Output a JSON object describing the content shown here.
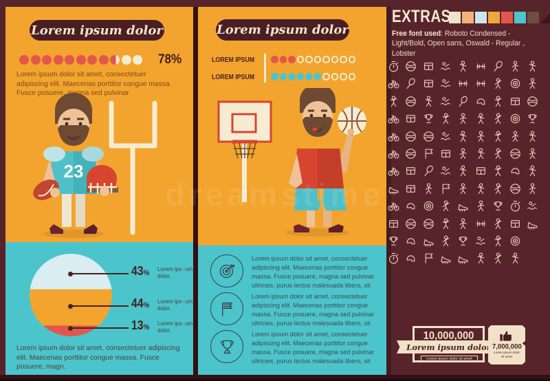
{
  "watermark": {
    "text": "dreamstime"
  },
  "left_panel": {
    "title": "Lorem ipsum dolor",
    "progress": {
      "percent": "78%",
      "total_dots": 11,
      "filled_dots": 8.6,
      "filled_color": "#e2574c",
      "empty_color": "#f6ecd2"
    },
    "intro": "Lorem ipsum dolor sit amet, consectetuer adipiscing elit. Maecenas porttitor congue massa. Fusce posuere, magna sed pulvinar",
    "illustration": "american-football-player-with-goal-post",
    "jersey_number": "23",
    "footer": "Lorem ipsum dolor sit amet, consectetuer adipiscing elit. Maecenas porttitor congue massa. Fusce posuere, magn."
  },
  "middle_panel": {
    "title": "Lorem ipsum dolor",
    "stats": [
      {
        "label": "LOREM IPSUM",
        "filled": 3,
        "total": 10,
        "fill_color": "#e2574c",
        "ring_color": "#f6ecd2"
      },
      {
        "label": "LOREM IPSUM",
        "filled": 6,
        "total": 10,
        "fill_color": "#4cc4cc",
        "ring_color": "#f6ecd2"
      }
    ],
    "illustration": "basketball-player-with-hoop",
    "features": [
      {
        "icon": "dart-target-icon",
        "text": "Lorem ipsum dolor sit amet, consectetuer adipiscing elit. Maecenas porttitor congue massa. Fusce posuere, magna sed pulvinar ultricies, purus lectus malesuada libero, sit"
      },
      {
        "icon": "checkered-flag-icon",
        "text": "Lorem ipsum dolor sit amet, consectetuer adipiscing elit. Maecenas porttitor congue massa. Fusce posuere, magna sed pulvinar ultricies, purus lectus malesuada libero, sit"
      },
      {
        "icon": "trophy-icon",
        "text": "Lorem ipsum dolor sit amet, consectetuer adipiscing elit. Maecenas porttitor congue massa. Fusce posuere, magna sed pulvinar ultricies, purus lectus malesuada libero, sit"
      }
    ]
  },
  "right_panel": {
    "title": "EXTRAS",
    "palette": [
      "#efe3cb",
      "#f2b27e",
      "#c9e6ec",
      "#f2a73b",
      "#e2574c",
      "#4ec4cb",
      "#6c4f3f"
    ],
    "palette_corner_color": "#3a161c",
    "font_note": {
      "bold": "Free font used",
      "rest": ": Roboto Condensed - Light/Bold, Open sans, Oswald - Regular , Lobster"
    },
    "icon_rows": [
      [
        "stopwatch",
        "volleyball",
        "scoreboard",
        "windsurfing",
        "kickboxing",
        "dumbbell",
        "tennis-racquet",
        "boxing-ring",
        "race-walking"
      ],
      [
        "exercise-bike",
        "squash-racquet",
        "chessboard",
        "pool-ladder-swimmer",
        "weightlifting-snatch",
        "weightlifting-press",
        "fencing",
        "dartboard-target",
        "rock-climbing"
      ],
      [
        "gymnast-balance",
        "baseball",
        "soccer-kick",
        "synchronized-swimming",
        "tennis-serve",
        "football-helmet",
        "golf-swing",
        "referee-clipboard",
        "baseball-bat"
      ],
      [
        "cycling-race",
        "pool-table",
        "winners-podium",
        "treadmill-running",
        "hurdle-runner",
        "boxing-match",
        "ice-skating",
        "shooting-target",
        "soccer-trophy"
      ],
      [
        "motocross",
        "basketball",
        "bowling-ball",
        "open-water-swimming",
        "ski-downhill",
        "gymnast-ribbon",
        "sprinter",
        "judo-throw",
        "cricket-bat"
      ],
      [
        "bicycle",
        "soccer-ball",
        "checkered-flag",
        "surfboard",
        "golfer",
        "karate-kick",
        "cheerleader",
        "basketball-hoop",
        "speed-skating"
      ],
      [
        "bmx-bike",
        "sports-billboard",
        "table-tennis",
        "relay-swimmers",
        "race-walker",
        "diving-springboard",
        "high-jump-bar",
        "boxing-gloves",
        "figure-skating"
      ],
      [
        "roller-skate",
        "stadium-field",
        "golf-club",
        "finish-tent",
        "ski-jump",
        "marathon-runner",
        "hammer-throw",
        "shuttlecock",
        "parachute-jump"
      ],
      [
        "track-cycling",
        "wrestling-headgear",
        "archery-target",
        "rope-climbing",
        "skate-ramp",
        "horizontal-bar-gymnast",
        "trophy-cup",
        "stopwatch-timer",
        "rowing-boat"
      ],
      [
        "score-clipboard",
        "rugby-ball",
        "basketball-dunk",
        "fencing-sword",
        "mountain-climber",
        "gym-bench",
        "bobsleigh",
        "goal-post",
        "shin-guards"
      ],
      [
        "podium-winners",
        "baseball-glove",
        "running-shoe",
        "fishing-rod",
        "winner-medal",
        "snorkeling",
        "yoga-pose",
        "archery-bow"
      ],
      [
        "timer-whistle",
        "helmet-mask",
        "golf-flag",
        "skate-boot",
        "sled",
        "javelin-thrower",
        "growth-arrows",
        "ski-poles"
      ]
    ],
    "badges": [
      {
        "value": "10,000,000",
        "ribbon_label": "Lorem ipsum dolor",
        "caption": "Lorem ipsum dolor sit amet"
      },
      {
        "value": "7,000,000",
        "icon": "thumbs-up-icon",
        "caption": "Lorem ipsum dolor sit amet"
      }
    ]
  },
  "chart_data": [
    {
      "type": "pie",
      "title": "Banded circle chart (left panel)",
      "style": "horizontal-banded-circle",
      "segments": [
        {
          "label": "Lorem ips- um dolor.",
          "value": 43,
          "color": "#d9edf2"
        },
        {
          "label": "Lorem ips- um dolor.",
          "value": 44,
          "color": "#f2a42e"
        },
        {
          "label": "Lorem ips- um dolor.",
          "value": 13,
          "color": "#e2574c"
        }
      ],
      "value_labels": [
        "43%",
        "44%",
        "13%"
      ],
      "legend_position": "right-callouts"
    },
    {
      "type": "bar",
      "title": "Dot progress meter (left panel)",
      "categories": [
        "progress"
      ],
      "values": [
        78
      ],
      "ylim": [
        0,
        100
      ],
      "value_labels": [
        "78%"
      ]
    },
    {
      "type": "bar",
      "title": "Dot meters (middle panel)",
      "categories": [
        "LOREM IPSUM",
        "LOREM IPSUM"
      ],
      "values": [
        3,
        6
      ],
      "ylim": [
        0,
        10
      ]
    }
  ]
}
